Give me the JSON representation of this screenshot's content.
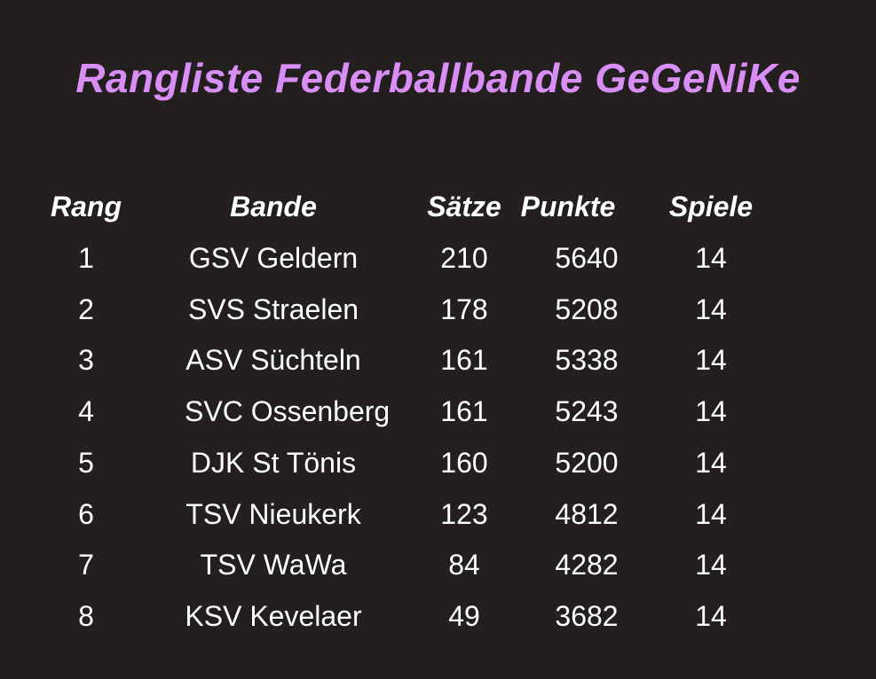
{
  "title": "Rangliste Federballbande GeGeNiKe",
  "colors": {
    "background": "#231f1f",
    "title": "#d98ef5",
    "text": "#ffffff"
  },
  "table": {
    "headers": {
      "rang": "Rang",
      "bande": "Bande",
      "saetze": "Sätze",
      "punkte": "Punkte",
      "spiele": "Spiele"
    },
    "rows": [
      {
        "rang": "1",
        "bande": "GSV Geldern",
        "saetze": "210",
        "punkte": "5640",
        "spiele": "14"
      },
      {
        "rang": "2",
        "bande": "SVS Straelen",
        "saetze": "178",
        "punkte": "5208",
        "spiele": "14"
      },
      {
        "rang": "3",
        "bande": "ASV Süchteln",
        "saetze": "161",
        "punkte": "5338",
        "spiele": "14"
      },
      {
        "rang": "4",
        "bande": "SVC Ossenberg",
        "saetze": "161",
        "punkte": "5243",
        "spiele": "14"
      },
      {
        "rang": "5",
        "bande": "DJK St Tönis",
        "saetze": "160",
        "punkte": "5200",
        "spiele": "14"
      },
      {
        "rang": "6",
        "bande": "TSV Nieukerk",
        "saetze": "123",
        "punkte": "4812",
        "spiele": "14"
      },
      {
        "rang": "7",
        "bande": "TSV WaWa",
        "saetze": "84",
        "punkte": "4282",
        "spiele": "14"
      },
      {
        "rang": "8",
        "bande": "KSV Kevelaer",
        "saetze": "49",
        "punkte": "3682",
        "spiele": "14"
      }
    ]
  }
}
